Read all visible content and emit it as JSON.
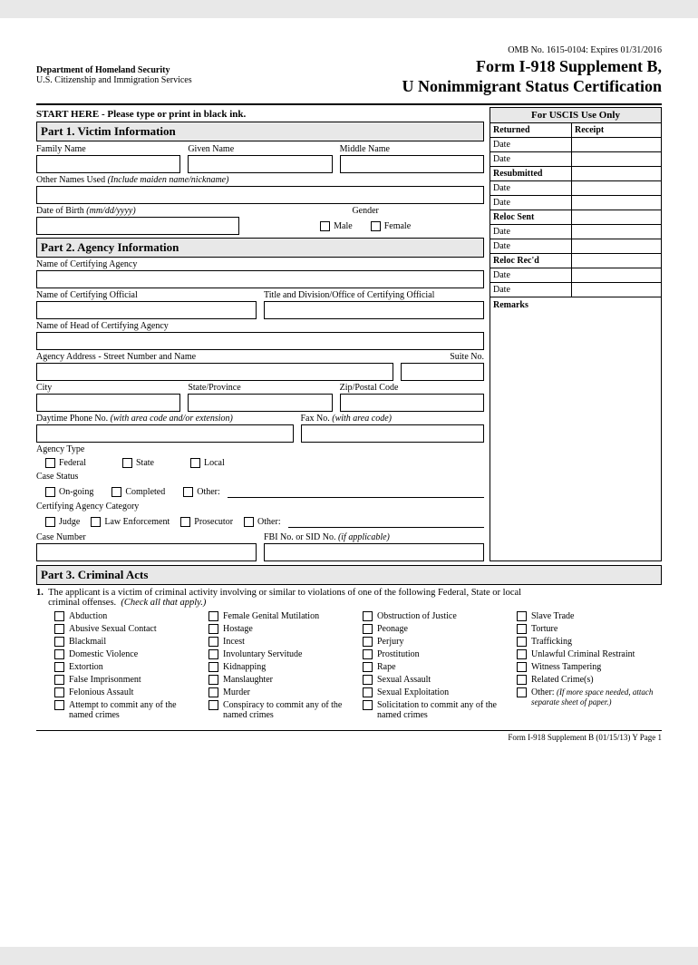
{
  "omb": "OMB No. 1615-0104: Expires 01/31/2016",
  "title1": "Form I-918 Supplement B,",
  "title2": "U Nonimmigrant Status Certification",
  "dept1": "Department of Homeland Security",
  "dept2": "U.S. Citizenship and Immigration Services",
  "start": "START HERE - Please type or print in black ink.",
  "part1": "Part 1. Victim Information",
  "family": "Family Name",
  "given": "Given Name",
  "middle": "Middle Name",
  "othernames": "Other Names Used (Include maiden name/nickname)",
  "dob": "Date of Birth (mm/dd/yyyy)",
  "gender": "Gender",
  "male": "Male",
  "female": "Female",
  "part2": "Part 2. Agency Information",
  "certagency": "Name of Certifying Agency",
  "certofficial": "Name of Certifying Official",
  "titlediv": "Title and Division/Office of Certifying Official",
  "headagency": "Name of Head of Certifying Agency",
  "agencyaddr": "Agency Address - Street Number and Name",
  "suite": "Suite No.",
  "city": "City",
  "state": "State/Province",
  "zip": "Zip/Postal Code",
  "daytime": "Daytime Phone No. (with area code and/or extension)",
  "fax": "Fax No. (with area code)",
  "agencytype": "Agency Type",
  "federal": "Federal",
  "statecb": "State",
  "local": "Local",
  "casestatus": "Case Status",
  "ongoing": "On-going",
  "completed": "Completed",
  "other": "Other:",
  "certcat": "Certifying Agency Category",
  "judge": "Judge",
  "law": "Law Enforcement",
  "prosecutor": "Prosecutor",
  "casenum": "Case Number",
  "fbino": "FBI No. or SID No. (if applicable)",
  "part3": "Part 3. Criminal Acts",
  "p3num": "1.",
  "p3text1": "The applicant is a victim of criminal activity involving or similar to violations of one of the following Federal, State or local",
  "p3text2": "criminal offenses.  (Check all that apply.)",
  "uscis_head": "For USCIS Use Only",
  "returned": "Returned",
  "receipt": "Receipt",
  "date": "Date",
  "resubmitted": "Resubmitted",
  "relocsent": "Reloc Sent",
  "relocrecd": "Reloc Rec'd",
  "remarks": "Remarks",
  "crimes_col1": [
    "Abduction",
    "Abusive Sexual Contact",
    "Blackmail",
    "Domestic Violence",
    "Extortion",
    "False Imprisonment",
    "Felonious Assault",
    "Attempt to commit any of the named crimes"
  ],
  "crimes_col2": [
    "Female Genital Mutilation",
    "Hostage",
    "Incest",
    "Involuntary Servitude",
    "Kidnapping",
    "Manslaughter",
    "Murder",
    "Conspiracy to commit any of the named crimes"
  ],
  "crimes_col3": [
    "Obstruction of Justice",
    "Peonage",
    "Perjury",
    "Prostitution",
    "Rape",
    "Sexual Assault",
    "Sexual Exploitation",
    "Solicitation to commit any of the named crimes"
  ],
  "crimes_col4": [
    "Slave Trade",
    "Torture",
    "Trafficking",
    "Unlawful Criminal Restraint",
    "Witness Tampering",
    "Related Crime(s)"
  ],
  "othercrime": "Other:",
  "othernote": "(If more space needed, attach separate sheet of paper.)",
  "footer": "Form I-918 Supplement B  (01/15/13)  Y  Page 1"
}
